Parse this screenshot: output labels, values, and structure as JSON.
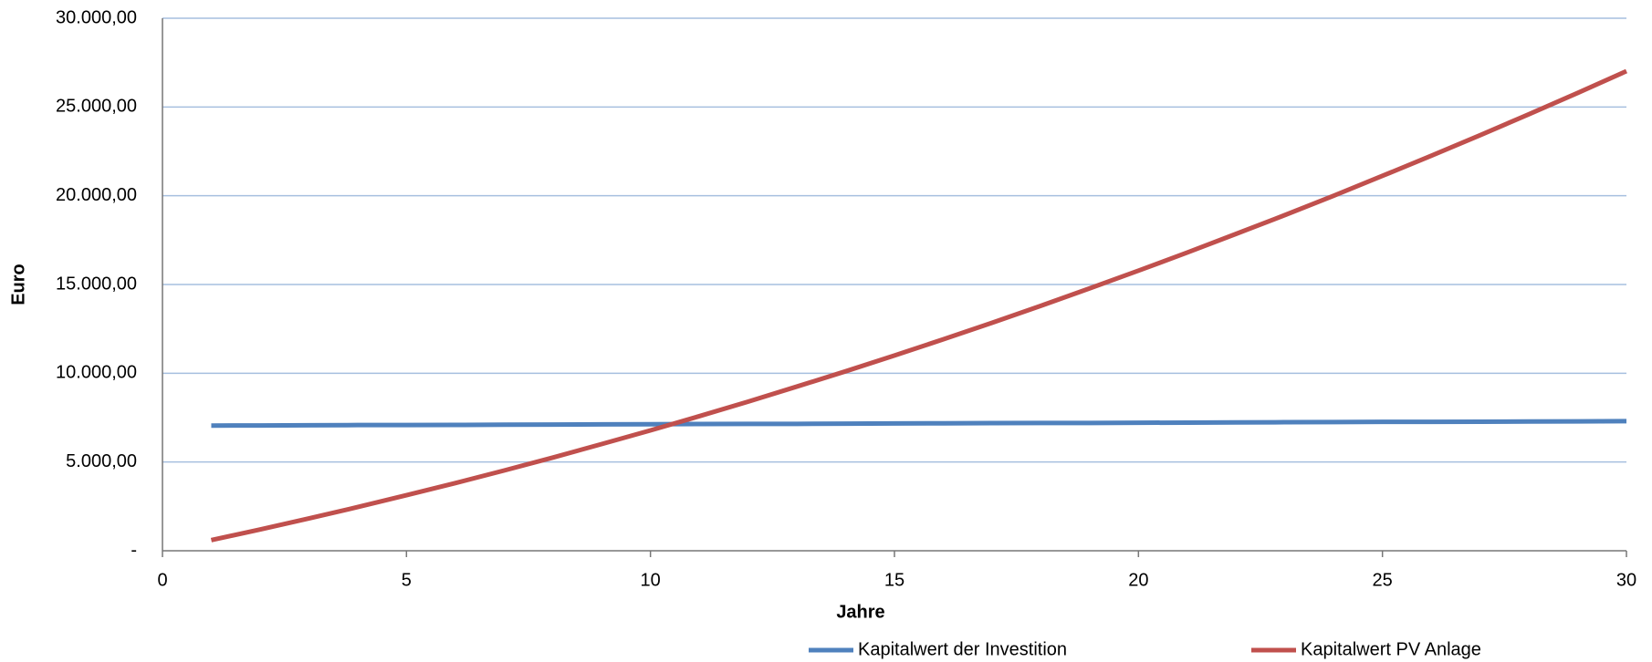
{
  "chart_data": {
    "type": "line",
    "x_label": "Jahre",
    "y_label": "Euro",
    "x": [
      1,
      2,
      3,
      4,
      5,
      6,
      7,
      8,
      9,
      10,
      11,
      12,
      13,
      14,
      15,
      16,
      17,
      18,
      19,
      20,
      21,
      22,
      23,
      24,
      25,
      26,
      27,
      28,
      29,
      30
    ],
    "series": [
      {
        "name": "Kapitalwert der Investition",
        "color": "#4f81bd",
        "values": [
          7050,
          7060,
          7070,
          7080,
          7080,
          7090,
          7100,
          7110,
          7120,
          7130,
          7140,
          7150,
          7150,
          7160,
          7170,
          7180,
          7190,
          7200,
          7200,
          7210,
          7220,
          7230,
          7240,
          7250,
          7260,
          7260,
          7270,
          7280,
          7290,
          7300
        ]
      },
      {
        "name": "Kapitalwert PV Anlage",
        "color": "#c0504d",
        "values": [
          600,
          1200,
          1820,
          2460,
          3130,
          3810,
          4520,
          5250,
          6010,
          6780,
          7580,
          8400,
          9250,
          10110,
          11000,
          11910,
          12840,
          13800,
          14780,
          15780,
          16800,
          17850,
          18910,
          20000,
          21120,
          22250,
          23410,
          24590,
          25790,
          27020
        ]
      }
    ],
    "xlim": [
      0,
      30
    ],
    "xticks": [
      0,
      5,
      10,
      15,
      20,
      25,
      30
    ],
    "ylim": [
      0,
      30000
    ],
    "yticks": [
      {
        "value": 0,
        "label": "-"
      },
      {
        "value": 5000,
        "label": "5.000,00"
      },
      {
        "value": 10000,
        "label": "10.000,00"
      },
      {
        "value": 15000,
        "label": "15.000,00"
      },
      {
        "value": 20000,
        "label": "20.000,00"
      },
      {
        "value": 25000,
        "label": "25.000,00"
      },
      {
        "value": 30000,
        "label": "30.000,00"
      }
    ],
    "grid": true,
    "legend": "bottom"
  }
}
